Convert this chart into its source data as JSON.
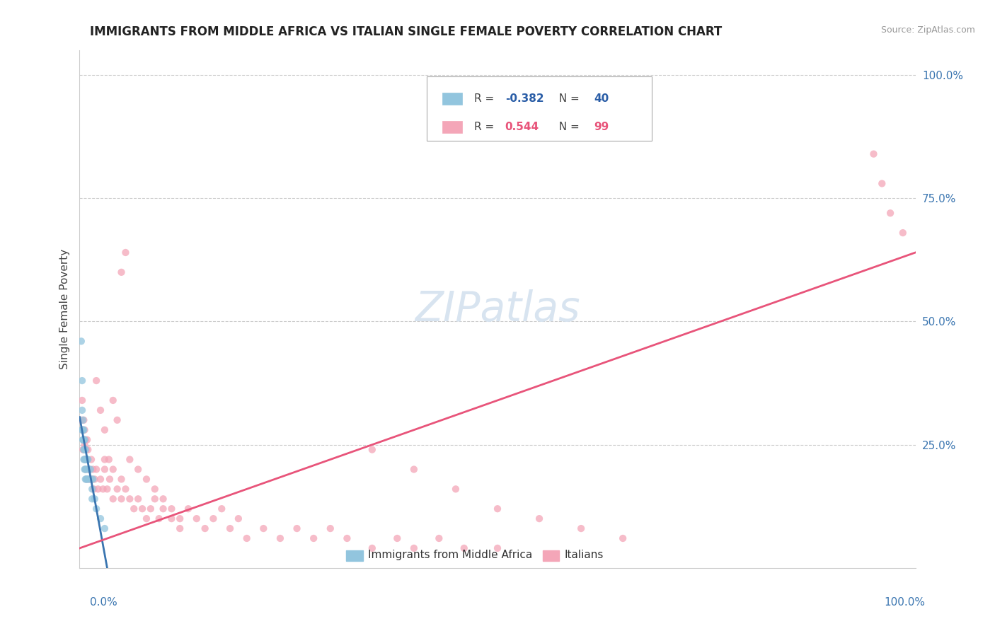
{
  "title": "IMMIGRANTS FROM MIDDLE AFRICA VS ITALIAN SINGLE FEMALE POVERTY CORRELATION CHART",
  "source": "Source: ZipAtlas.com",
  "ylabel": "Single Female Poverty",
  "legend_blue_r": "-0.382",
  "legend_blue_n": "40",
  "legend_pink_r": "0.544",
  "legend_pink_n": "99",
  "legend_label_blue": "Immigrants from Middle Africa",
  "legend_label_pink": "Italians",
  "blue_color": "#92c5de",
  "pink_color": "#f4a6b8",
  "blue_line_color": "#3a75b0",
  "pink_line_color": "#e8547a",
  "blue_r_color": "#2b5ea7",
  "pink_r_color": "#e8547a",
  "axis_label_color": "#3a75b0",
  "watermark_color": "#d8e4f0",
  "grid_color": "#cccccc",
  "blue_x": [
    0.002,
    0.003,
    0.003,
    0.003,
    0.004,
    0.004,
    0.004,
    0.005,
    0.005,
    0.005,
    0.005,
    0.006,
    0.006,
    0.006,
    0.007,
    0.007,
    0.007,
    0.008,
    0.008,
    0.009,
    0.009,
    0.01,
    0.01,
    0.011,
    0.012,
    0.013,
    0.014,
    0.015,
    0.016,
    0.018,
    0.003,
    0.004,
    0.005,
    0.006,
    0.007,
    0.008,
    0.015,
    0.02,
    0.025,
    0.03
  ],
  "blue_y": [
    0.46,
    0.38,
    0.32,
    0.28,
    0.3,
    0.26,
    0.28,
    0.28,
    0.24,
    0.22,
    0.26,
    0.26,
    0.22,
    0.2,
    0.24,
    0.2,
    0.18,
    0.22,
    0.18,
    0.22,
    0.18,
    0.22,
    0.18,
    0.2,
    0.18,
    0.2,
    0.18,
    0.16,
    0.18,
    0.14,
    0.28,
    0.26,
    0.26,
    0.24,
    0.22,
    0.2,
    0.14,
    0.12,
    0.1,
    0.08
  ],
  "pink_x": [
    0.002,
    0.003,
    0.003,
    0.004,
    0.004,
    0.005,
    0.005,
    0.005,
    0.006,
    0.006,
    0.006,
    0.007,
    0.007,
    0.007,
    0.008,
    0.008,
    0.009,
    0.009,
    0.01,
    0.01,
    0.011,
    0.012,
    0.013,
    0.014,
    0.015,
    0.016,
    0.017,
    0.018,
    0.02,
    0.022,
    0.025,
    0.028,
    0.03,
    0.033,
    0.036,
    0.04,
    0.045,
    0.05,
    0.055,
    0.06,
    0.065,
    0.07,
    0.075,
    0.08,
    0.085,
    0.09,
    0.095,
    0.1,
    0.11,
    0.12,
    0.13,
    0.14,
    0.15,
    0.16,
    0.17,
    0.18,
    0.19,
    0.2,
    0.22,
    0.24,
    0.26,
    0.28,
    0.3,
    0.32,
    0.35,
    0.38,
    0.4,
    0.43,
    0.46,
    0.5,
    0.03,
    0.04,
    0.05,
    0.06,
    0.07,
    0.08,
    0.09,
    0.1,
    0.11,
    0.12,
    0.02,
    0.025,
    0.03,
    0.035,
    0.04,
    0.045,
    0.05,
    0.055,
    0.35,
    0.4,
    0.45,
    0.5,
    0.55,
    0.6,
    0.65,
    0.95,
    0.96,
    0.97,
    0.985
  ],
  "pink_y": [
    0.3,
    0.28,
    0.34,
    0.24,
    0.28,
    0.24,
    0.26,
    0.3,
    0.22,
    0.25,
    0.28,
    0.22,
    0.26,
    0.2,
    0.24,
    0.18,
    0.22,
    0.26,
    0.2,
    0.24,
    0.18,
    0.2,
    0.18,
    0.22,
    0.18,
    0.2,
    0.16,
    0.18,
    0.2,
    0.16,
    0.18,
    0.16,
    0.2,
    0.16,
    0.18,
    0.14,
    0.16,
    0.14,
    0.16,
    0.14,
    0.12,
    0.14,
    0.12,
    0.1,
    0.12,
    0.14,
    0.1,
    0.12,
    0.1,
    0.08,
    0.12,
    0.1,
    0.08,
    0.1,
    0.12,
    0.08,
    0.1,
    0.06,
    0.08,
    0.06,
    0.08,
    0.06,
    0.08,
    0.06,
    0.04,
    0.06,
    0.04,
    0.06,
    0.04,
    0.04,
    0.22,
    0.2,
    0.18,
    0.22,
    0.2,
    0.18,
    0.16,
    0.14,
    0.12,
    0.1,
    0.38,
    0.32,
    0.28,
    0.22,
    0.34,
    0.3,
    0.6,
    0.64,
    0.24,
    0.2,
    0.16,
    0.12,
    0.1,
    0.08,
    0.06,
    0.84,
    0.78,
    0.72,
    0.68
  ],
  "xlim": [
    0.0,
    1.0
  ],
  "ylim": [
    0.0,
    1.05
  ],
  "ytick_positions": [
    0.25,
    0.5,
    0.75,
    1.0
  ],
  "ytick_labels": [
    "25.0%",
    "50.0%",
    "75.0%",
    "100.0%"
  ]
}
